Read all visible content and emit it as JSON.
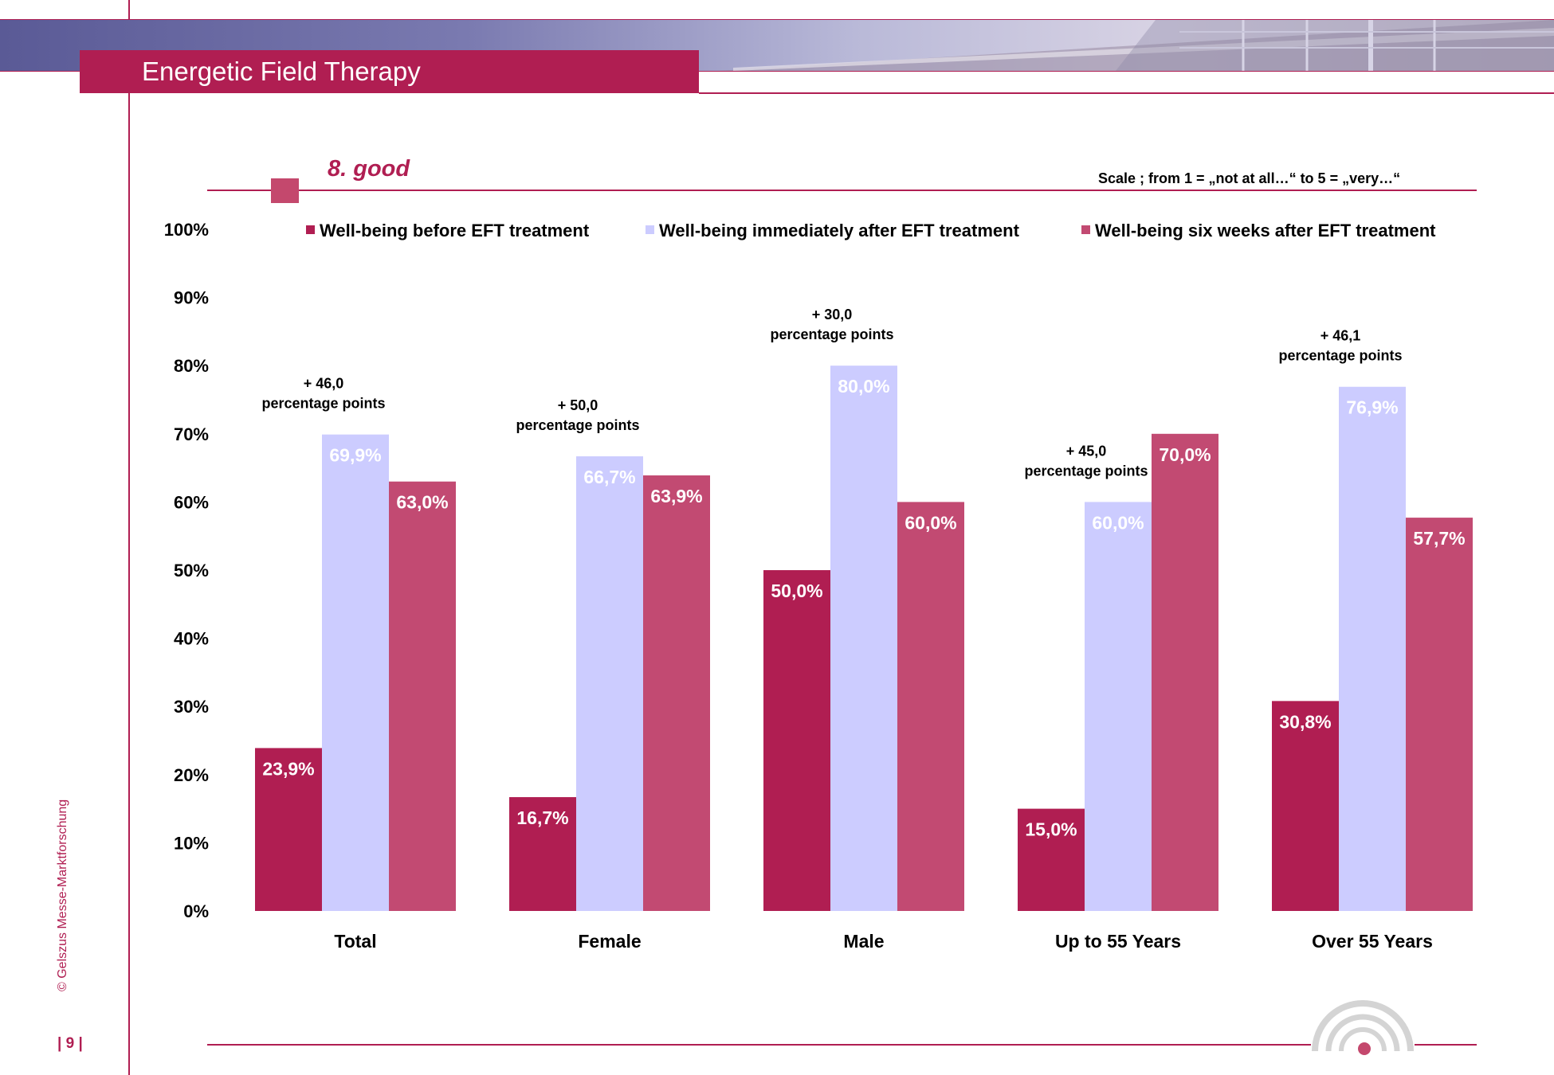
{
  "header": {
    "title": "Energetic Field Therapy"
  },
  "section": {
    "title": "8. good",
    "scale_note": "Scale ; from 1 = „not at all…“  to 5 = „very…“"
  },
  "footer": {
    "copyright": "© Gelszus Messe-Marktforschung",
    "page_number": "| 9 |"
  },
  "colors": {
    "brand": "#b01e52",
    "before": "#b01e52",
    "immediately_after": "#ccccff",
    "six_weeks_after": "#c24a72"
  },
  "chart_data": {
    "type": "bar",
    "categories": [
      "Total",
      "Female",
      "Male",
      "Up to 55 Years",
      "Over 55 Years"
    ],
    "series": [
      {
        "name": "Well-being before EFT treatment",
        "values": [
          23.9,
          16.7,
          50.0,
          15.0,
          30.8
        ],
        "labels": [
          "23,9%",
          "16,7%",
          "50,0%",
          "15,0%",
          "30,8%"
        ]
      },
      {
        "name": "Well-being immediately after EFT treatment",
        "values": [
          69.9,
          66.7,
          80.0,
          60.0,
          76.9
        ],
        "labels": [
          "69,9%",
          "66,7%",
          "80,0%",
          "60,0%",
          "76,9%"
        ]
      },
      {
        "name": "Well-being six weeks after EFT treatment",
        "values": [
          63.0,
          63.9,
          60.0,
          70.0,
          57.7
        ],
        "labels": [
          "63,0%",
          "63,9%",
          "60,0%",
          "70,0%",
          "57,7%"
        ]
      }
    ],
    "y_ticks": [
      "0%",
      "10%",
      "20%",
      "30%",
      "40%",
      "50%",
      "60%",
      "70%",
      "80%",
      "90%",
      "100%"
    ],
    "ylim": [
      0,
      100
    ],
    "grid": false,
    "legend_position": "top",
    "annotations": [
      {
        "line1": "+ 46,0",
        "line2": "percentage points"
      },
      {
        "line1": "+ 50,0",
        "line2": "percentage points"
      },
      {
        "line1": "+ 30,0",
        "line2": "percentage points"
      },
      {
        "line1": "+ 45,0",
        "line2": "percentage points"
      },
      {
        "line1": "+ 46,1",
        "line2": "percentage points"
      }
    ]
  }
}
